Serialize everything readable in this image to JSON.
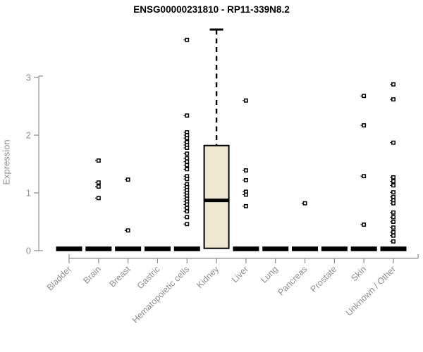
{
  "title": "ENSG00000231810 - RP11-339N8.2",
  "colors": {
    "background": "#ffffff",
    "title_text": "#000000",
    "axis": "#8f8f8f",
    "axis_text": "#8f8f8f",
    "box_fill": "#ede8cf",
    "box_border": "#000000",
    "point_stroke": "#000000",
    "point_fill": "#ffffff",
    "collapsed_box": "#000000"
  },
  "chart_data": {
    "type": "boxplot",
    "title": "ENSG00000231810 - RP11-339N8.2",
    "xlabel": "",
    "ylabel": "Expression",
    "yticks": [
      0,
      1,
      2,
      3
    ],
    "ylim": [
      0,
      3.95
    ],
    "grid": false,
    "legend": "none",
    "categories": [
      "Bladder",
      "Brain",
      "Breast",
      "Gastric",
      "Hematopoietic cells",
      "Kidney",
      "Liver",
      "Lung",
      "Pancreas",
      "Prostate",
      "Skin",
      "Unknown / Other"
    ],
    "series": [
      {
        "category": "Bladder",
        "box": {
          "min": 0,
          "q1": 0,
          "median": 0,
          "q3": 0,
          "max": 0
        },
        "points": []
      },
      {
        "category": "Brain",
        "box": {
          "min": 0,
          "q1": 0,
          "median": 0,
          "q3": 0,
          "max": 0
        },
        "points": [
          1.56,
          1.18,
          1.11,
          0.91
        ]
      },
      {
        "category": "Breast",
        "box": {
          "min": 0,
          "q1": 0,
          "median": 0,
          "q3": 0,
          "max": 0
        },
        "points": [
          1.23,
          0.35
        ]
      },
      {
        "category": "Gastric",
        "box": {
          "min": 0,
          "q1": 0,
          "median": 0,
          "q3": 0,
          "max": 0
        },
        "points": []
      },
      {
        "category": "Hematopoietic cells",
        "box": {
          "min": 0,
          "q1": 0,
          "median": 0,
          "q3": 0,
          "max": 0
        },
        "points": [
          3.65,
          2.34,
          2.05,
          2.0,
          1.95,
          1.88,
          1.83,
          1.78,
          1.68,
          1.6,
          1.54,
          1.48,
          1.41,
          1.29,
          1.24,
          1.15,
          1.1,
          1.05,
          1.0,
          0.95,
          0.9,
          0.85,
          0.8,
          0.74,
          0.68,
          0.58,
          0.46
        ]
      },
      {
        "category": "Kidney",
        "box": {
          "min": 0.04,
          "q1": 0.04,
          "median": 0.87,
          "q3": 1.82,
          "max": 3.83
        },
        "points": []
      },
      {
        "category": "Liver",
        "box": {
          "min": 0,
          "q1": 0,
          "median": 0,
          "q3": 0,
          "max": 0
        },
        "points": [
          2.6,
          1.39,
          1.22,
          1.02,
          0.97,
          0.77
        ]
      },
      {
        "category": "Lung",
        "box": {
          "min": 0,
          "q1": 0,
          "median": 0,
          "q3": 0,
          "max": 0
        },
        "points": []
      },
      {
        "category": "Pancreas",
        "box": {
          "min": 0,
          "q1": 0,
          "median": 0,
          "q3": 0,
          "max": 0
        },
        "points": [
          0.82
        ]
      },
      {
        "category": "Prostate",
        "box": {
          "min": 0,
          "q1": 0,
          "median": 0,
          "q3": 0,
          "max": 0
        },
        "points": []
      },
      {
        "category": "Skin",
        "box": {
          "min": 0,
          "q1": 0,
          "median": 0,
          "q3": 0,
          "max": 0
        },
        "points": [
          2.68,
          2.17,
          1.29,
          0.45
        ]
      },
      {
        "category": "Unknown / Other",
        "box": {
          "min": 0,
          "q1": 0,
          "median": 0,
          "q3": 0,
          "max": 0
        },
        "points": [
          2.88,
          2.62,
          1.87,
          1.27,
          1.2,
          1.13,
          1.01,
          0.93,
          0.87,
          0.82,
          0.66,
          0.58,
          0.5,
          0.4,
          0.32,
          0.26,
          0.16
        ]
      }
    ]
  }
}
